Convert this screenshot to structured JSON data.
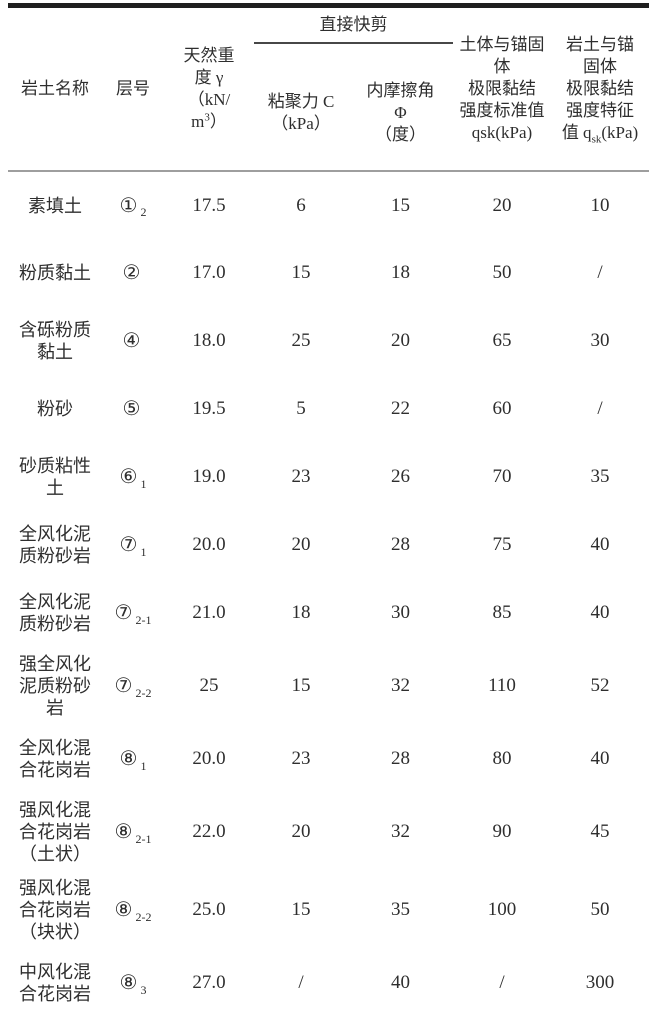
{
  "table": {
    "headers": {
      "col_rock_name": "岩土名称",
      "col_layer": "层号",
      "col_unit_weight_prefix": "天然重\n度 γ\n（kN/\nm",
      "col_unit_weight_sup": "3",
      "col_unit_weight_suffix": "）",
      "group_direct_shear": "直接快剪",
      "col_cohesion": "粘聚力 C\n（kPa）",
      "col_friction": "内摩擦角\nΦ\n（度）",
      "col_soil_bond": "土体与锚固\n体\n极限黏结\n强度标准值\nqsk(kPa)",
      "col_rock_bond_prefix": "岩土与锚\n固体\n极限黏结\n强度特征\n值 q",
      "col_rock_bond_sub": "sk",
      "col_rock_bond_suffix": "(kPa)"
    },
    "rows": [
      {
        "name": "素填土",
        "layer_circle": "①",
        "layer_sub": "2",
        "unit_weight": "17.5",
        "cohesion": "6",
        "friction": "15",
        "soil_bond": "20",
        "rock_bond": "10"
      },
      {
        "name": "粉质黏土",
        "layer_circle": "②",
        "layer_sub": "",
        "unit_weight": "17.0",
        "cohesion": "15",
        "friction": "18",
        "soil_bond": "50",
        "rock_bond": "/"
      },
      {
        "name": "含砾粉质\n黏土",
        "layer_circle": "④",
        "layer_sub": "",
        "unit_weight": "18.0",
        "cohesion": "25",
        "friction": "20",
        "soil_bond": "65",
        "rock_bond": "30"
      },
      {
        "name": "粉砂",
        "layer_circle": "⑤",
        "layer_sub": "",
        "unit_weight": "19.5",
        "cohesion": "5",
        "friction": "22",
        "soil_bond": "60",
        "rock_bond": "/"
      },
      {
        "name": "砂质粘性\n土",
        "layer_circle": "⑥",
        "layer_sub": "1",
        "unit_weight": "19.0",
        "cohesion": "23",
        "friction": "26",
        "soil_bond": "70",
        "rock_bond": "35"
      },
      {
        "name": "全风化泥\n质粉砂岩",
        "layer_circle": "⑦",
        "layer_sub": "1",
        "unit_weight": "20.0",
        "cohesion": "20",
        "friction": "28",
        "soil_bond": "75",
        "rock_bond": "40"
      },
      {
        "name": "全风化泥\n质粉砂岩",
        "layer_circle": "⑦",
        "layer_sub": "2-1",
        "unit_weight": "21.0",
        "cohesion": "18",
        "friction": "30",
        "soil_bond": "85",
        "rock_bond": "40"
      },
      {
        "name": "强全风化\n泥质粉砂\n岩",
        "layer_circle": "⑦",
        "layer_sub": "2-2",
        "unit_weight": "25",
        "cohesion": "15",
        "friction": "32",
        "soil_bond": "110",
        "rock_bond": "52"
      },
      {
        "name": "全风化混\n合花岗岩",
        "layer_circle": "⑧",
        "layer_sub": "1",
        "unit_weight": "20.0",
        "cohesion": "23",
        "friction": "28",
        "soil_bond": "80",
        "rock_bond": "40"
      },
      {
        "name": "强风化混\n合花岗岩\n（土状）",
        "layer_circle": "⑧",
        "layer_sub": "2-1",
        "unit_weight": "22.0",
        "cohesion": "20",
        "friction": "32",
        "soil_bond": "90",
        "rock_bond": "45"
      },
      {
        "name": "强风化混\n合花岗岩\n（块状）",
        "layer_circle": "⑧",
        "layer_sub": "2-2",
        "unit_weight": "25.0",
        "cohesion": "15",
        "friction": "35",
        "soil_bond": "100",
        "rock_bond": "50"
      },
      {
        "name": "中风化混\n合花岗岩",
        "layer_circle": "⑧",
        "layer_sub": "3",
        "unit_weight": "27.0",
        "cohesion": "/",
        "friction": "40",
        "soil_bond": "/",
        "rock_bond": "300"
      }
    ]
  }
}
